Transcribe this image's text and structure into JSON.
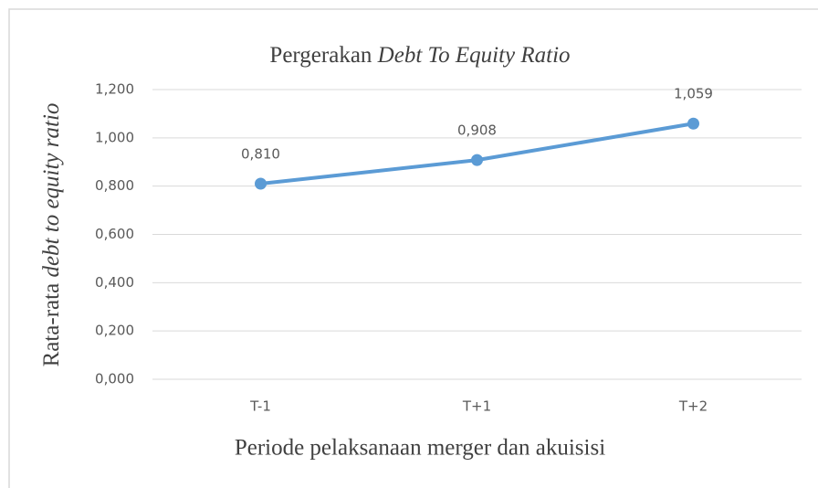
{
  "chart_data": {
    "type": "line",
    "title": {
      "plain": "Pergerakan",
      "italic": "Debt To Equity Ratio"
    },
    "y_label": {
      "plain": "Rata-rata",
      "italic": "debt to equity ratio"
    },
    "x_label": "Periode pelaksanaan merger dan akuisisi",
    "categories": [
      "T-1",
      "T+1",
      "T+2"
    ],
    "series": [
      {
        "name": "Debt To Equity Ratio",
        "color": "#5b9bd5",
        "values": [
          0.81,
          0.908,
          1.059
        ],
        "value_labels": [
          "0,810",
          "0,908",
          "1,059"
        ]
      }
    ],
    "ylim": [
      0,
      1.2
    ],
    "yticks": [
      {
        "value": 0,
        "label": "0,000"
      },
      {
        "value": 0.2,
        "label": "0,200"
      },
      {
        "value": 0.4,
        "label": "0,400"
      },
      {
        "value": 0.6,
        "label": "0,600"
      },
      {
        "value": 0.8,
        "label": "0,800"
      },
      {
        "value": 1.0,
        "label": "1,000"
      },
      {
        "value": 1.2,
        "label": "1,200"
      }
    ],
    "grid": true,
    "legend": false
  }
}
